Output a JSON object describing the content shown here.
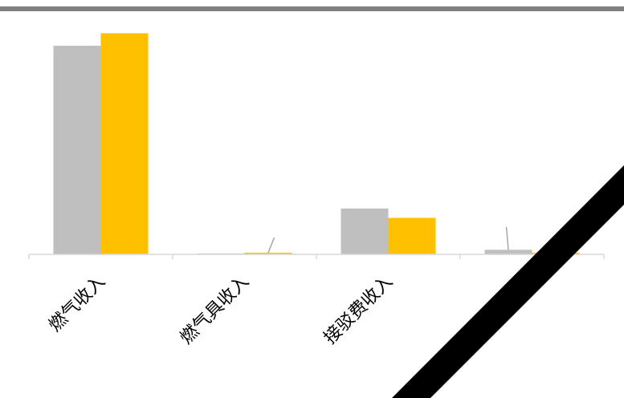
{
  "chart_data": {
    "type": "bar",
    "categories": [
      "燃气收入",
      "燃气具收入",
      "接驳费收入",
      ""
    ],
    "series": [
      {
        "values": [
          100,
          0.3,
          22,
          2.2
        ],
        "color": "#bfbfbf"
      },
      {
        "values": [
          106,
          0.8,
          17.5,
          0.8
        ],
        "color": "#ffc000"
      }
    ],
    "ylim": [
      0,
      110
    ],
    "grid": false,
    "legend": "none",
    "colors": {
      "top_rule": "#808080",
      "axis": "#d9d9d9",
      "leader_line": "#a6a6a6",
      "diagonal_band": "#000000"
    }
  }
}
